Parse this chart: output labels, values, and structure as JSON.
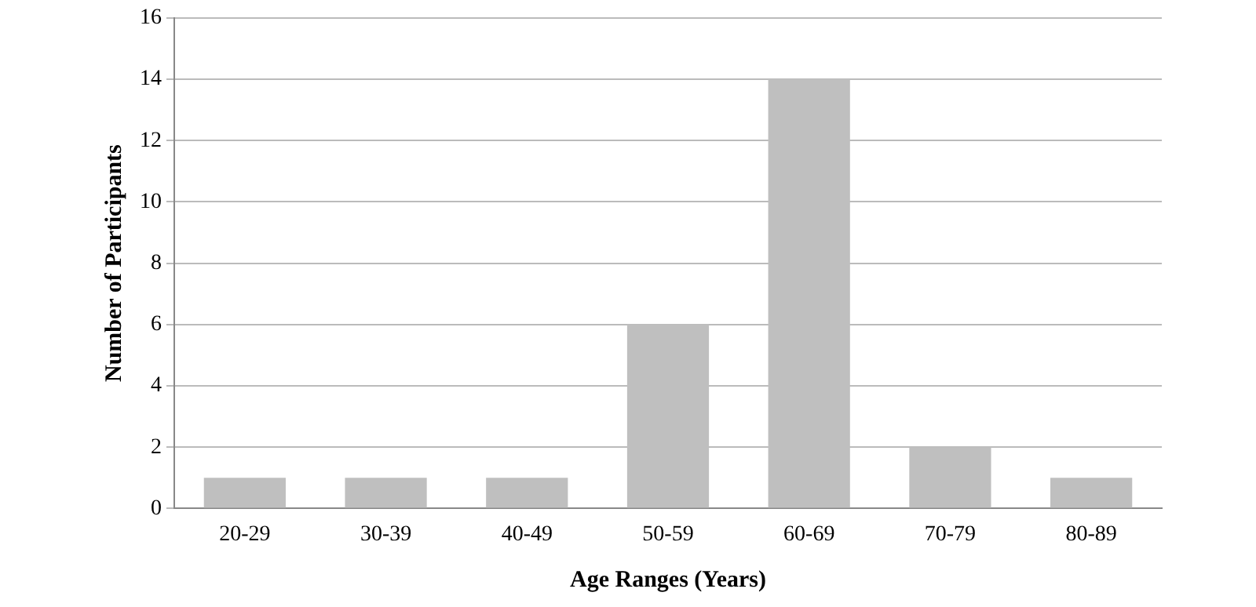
{
  "chart_data": {
    "type": "bar",
    "xlabel": "Age Ranges (Years)",
    "ylabel": "Number of Participants",
    "categories": [
      "20-29",
      "30-39",
      "40-49",
      "50-59",
      "60-69",
      "70-79",
      "80-89"
    ],
    "values": [
      1,
      1,
      1,
      6,
      14,
      2,
      1
    ],
    "color": "#bfbfbf",
    "ylim": [
      0,
      16
    ],
    "yticks": [
      0,
      2,
      4,
      6,
      8,
      10,
      12,
      14,
      16
    ],
    "grid": "y"
  }
}
